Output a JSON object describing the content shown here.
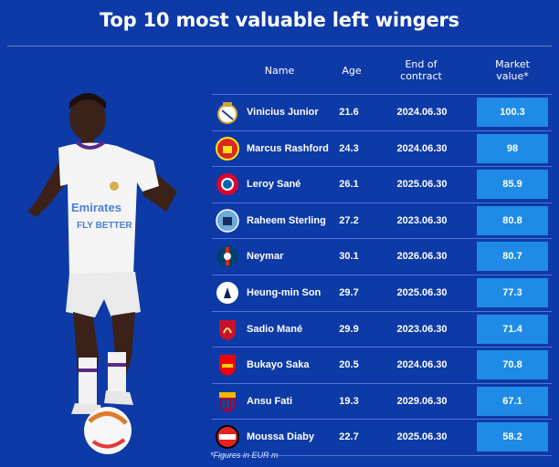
{
  "title": "Top 10 most valuable left wingers",
  "headers": {
    "name": "Name",
    "age": "Age",
    "end_line1": "End of",
    "end_line2": "contract",
    "value_line1": "Market",
    "value_line2": "value*"
  },
  "footnote": "*Figures in EUR m",
  "colors": {
    "background": "#0d3aa6",
    "value_box": "#1f8be6",
    "divider": "#4d78d8"
  },
  "rows": [
    {
      "name": "Vinicius Junior",
      "age": "21.6",
      "end": "2024.06.30",
      "value": "100.3",
      "club_icon": "real-madrid-crest-icon"
    },
    {
      "name": "Marcus Rashford",
      "age": "24.3",
      "end": "2024.06.30",
      "value": "98",
      "club_icon": "manchester-united-crest-icon"
    },
    {
      "name": "Leroy Sané",
      "age": "26.1",
      "end": "2025.06.30",
      "value": "85.9",
      "club_icon": "bayern-munich-crest-icon"
    },
    {
      "name": "Raheem Sterling",
      "age": "27.2",
      "end": "2023.06.30",
      "value": "80.8",
      "club_icon": "manchester-city-crest-icon"
    },
    {
      "name": "Neymar",
      "age": "30.1",
      "end": "2026.06.30",
      "value": "80.7",
      "club_icon": "psg-crest-icon"
    },
    {
      "name": "Heung-min Son",
      "age": "29.7",
      "end": "2025.06.30",
      "value": "77.3",
      "club_icon": "tottenham-crest-icon"
    },
    {
      "name": "Sadio Mané",
      "age": "29.9",
      "end": "2023.06.30",
      "value": "71.4",
      "club_icon": "liverpool-crest-icon"
    },
    {
      "name": "Bukayo Saka",
      "age": "20.5",
      "end": "2024.06.30",
      "value": "70.8",
      "club_icon": "arsenal-crest-icon"
    },
    {
      "name": "Ansu Fati",
      "age": "19.3",
      "end": "2029.06.30",
      "value": "67.1",
      "club_icon": "barcelona-crest-icon"
    },
    {
      "name": "Moussa Diaby",
      "age": "22.7",
      "end": "2025.06.30",
      "value": "58.2",
      "club_icon": "leverkusen-crest-icon"
    }
  ],
  "chart_data": {
    "type": "table",
    "title": "Top 10 most valuable left wingers",
    "columns": [
      "Name",
      "Age",
      "End of contract",
      "Market value*"
    ],
    "rows": [
      [
        "Vinicius Junior",
        21.6,
        "2024.06.30",
        100.3
      ],
      [
        "Marcus Rashford",
        24.3,
        "2024.06.30",
        98
      ],
      [
        "Leroy Sané",
        26.1,
        "2025.06.30",
        85.9
      ],
      [
        "Raheem Sterling",
        27.2,
        "2023.06.30",
        80.8
      ],
      [
        "Neymar",
        30.1,
        "2026.06.30",
        80.7
      ],
      [
        "Heung-min Son",
        29.7,
        "2025.06.30",
        77.3
      ],
      [
        "Sadio Mané",
        29.9,
        "2023.06.30",
        71.4
      ],
      [
        "Bukayo Saka",
        20.5,
        "2024.06.30",
        70.8
      ],
      [
        "Ansu Fati",
        19.3,
        "2029.06.30",
        67.1
      ],
      [
        "Moussa Diaby",
        22.7,
        "2025.06.30",
        58.2
      ]
    ],
    "note": "*Figures in EUR m"
  }
}
